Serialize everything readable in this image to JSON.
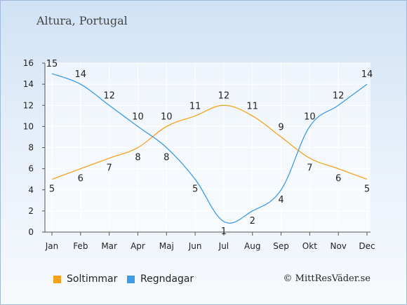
{
  "chart_data": {
    "type": "line",
    "title": "Altura, Portugal",
    "categories": [
      "Jan",
      "Feb",
      "Mar",
      "Apr",
      "Maj",
      "Jun",
      "Jul",
      "Aug",
      "Sep",
      "Okt",
      "Nov",
      "Dec"
    ],
    "series": [
      {
        "name": "Soltimmar",
        "color": "#f4a21e",
        "values": [
          5,
          6,
          7,
          8,
          10,
          11,
          12,
          11,
          9,
          7,
          6,
          5
        ]
      },
      {
        "name": "Regndagar",
        "color": "#3d9be8",
        "values": [
          15,
          14,
          12,
          10,
          8,
          5,
          1,
          2,
          4,
          10,
          12,
          14
        ]
      }
    ],
    "yticks": [
      0,
      2,
      4,
      6,
      8,
      10,
      12,
      14,
      16
    ],
    "ylim": [
      0,
      16
    ],
    "grid": true,
    "legend": "bottom-left"
  },
  "credit": "© MittResVäder.se"
}
